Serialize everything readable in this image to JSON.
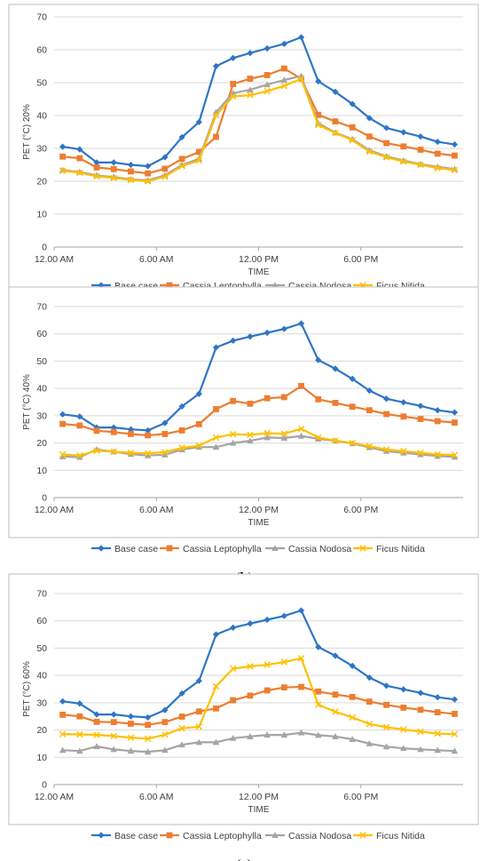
{
  "colors": {
    "base_case": "#2E75C6",
    "cassia_leptophylla": "#ED7D31",
    "cassia_nodosa": "#A5A5A5",
    "ficus_nitida": "#FFC000",
    "grid": "#D9D9D9",
    "frame": "#BFBFBF"
  },
  "chart_data": [
    {
      "type": "line",
      "caption_letter": "a",
      "ylabel": "PET (°C) 20%",
      "xlabel": "TIME",
      "ylim": [
        0,
        70
      ],
      "yticks": [
        0,
        10,
        20,
        30,
        40,
        50,
        60,
        70
      ],
      "xtick_labels": [
        "12.00 AM",
        "6.00 AM",
        "12.00 PM",
        "6.00 PM"
      ],
      "xtick_positions": [
        0,
        6,
        12,
        18
      ],
      "x": [
        0.5,
        1.5,
        2.5,
        3.5,
        4.5,
        5.5,
        6.5,
        7.5,
        8.5,
        9.5,
        10.5,
        11.5,
        12.5,
        13.5,
        14.5,
        15.5,
        16.5,
        17.5,
        18.5,
        19.5,
        20.5,
        21.5,
        22.5,
        23.5
      ],
      "legend_position": "bottom",
      "grid": true,
      "series": [
        {
          "name": "Base case",
          "color_key": "base_case",
          "marker": "diamond",
          "values": [
            30.5,
            29.7,
            25.7,
            25.7,
            25.0,
            24.6,
            27.3,
            33.4,
            38.0,
            55.0,
            57.5,
            59.0,
            60.4,
            61.8,
            63.8,
            50.4,
            47.2,
            43.5,
            39.2,
            36.2,
            34.9,
            33.6,
            32.0,
            31.2
          ]
        },
        {
          "name": "Cassia Leptophylla",
          "color_key": "cassia_leptophylla",
          "marker": "square",
          "values": [
            27.5,
            27.0,
            24.2,
            23.7,
            23.0,
            22.4,
            23.8,
            26.8,
            28.9,
            33.5,
            49.6,
            51.2,
            52.3,
            54.3,
            51.2,
            40.2,
            38.2,
            36.4,
            33.6,
            31.6,
            30.6,
            29.6,
            28.4,
            27.8
          ]
        },
        {
          "name": "Cassia Nodosa",
          "color_key": "cassia_nodosa",
          "marker": "triangle",
          "values": [
            23.4,
            22.8,
            21.8,
            21.3,
            20.6,
            20.3,
            21.8,
            25.0,
            26.8,
            41.0,
            46.8,
            47.8,
            49.4,
            50.8,
            52.0,
            37.6,
            34.8,
            32.8,
            29.4,
            27.6,
            26.3,
            25.2,
            24.4,
            23.7
          ]
        },
        {
          "name": "Ficus Nitida",
          "color_key": "ficus_nitida",
          "marker": "x",
          "values": [
            23.2,
            22.6,
            21.5,
            21.0,
            20.4,
            20.0,
            21.4,
            24.6,
            26.3,
            40.1,
            45.8,
            46.2,
            47.4,
            49.0,
            51.2,
            37.1,
            34.7,
            32.5,
            29.0,
            27.3,
            26.0,
            25.0,
            24.0,
            23.4
          ]
        }
      ]
    },
    {
      "type": "line",
      "caption_letter": "b",
      "ylabel": "PET (°C) 40%",
      "xlabel": "TIME",
      "ylim": [
        0,
        70
      ],
      "yticks": [
        0,
        10,
        20,
        30,
        40,
        50,
        60,
        70
      ],
      "xtick_labels": [
        "12.00 AM",
        "6.00 AM",
        "12.00 PM",
        "6.00 PM"
      ],
      "xtick_positions": [
        0,
        6,
        12,
        18
      ],
      "x": [
        0.5,
        1.5,
        2.5,
        3.5,
        4.5,
        5.5,
        6.5,
        7.5,
        8.5,
        9.5,
        10.5,
        11.5,
        12.5,
        13.5,
        14.5,
        15.5,
        16.5,
        17.5,
        18.5,
        19.5,
        20.5,
        21.5,
        22.5,
        23.5
      ],
      "legend_position": "bottom",
      "grid": true,
      "series": [
        {
          "name": "Base case",
          "color_key": "base_case",
          "marker": "diamond",
          "values": [
            30.5,
            29.7,
            25.7,
            25.7,
            25.0,
            24.6,
            27.3,
            33.4,
            38.0,
            55.0,
            57.5,
            59.0,
            60.4,
            61.8,
            63.8,
            50.4,
            47.2,
            43.5,
            39.2,
            36.2,
            34.9,
            33.6,
            32.0,
            31.2
          ]
        },
        {
          "name": "Cassia Leptophylla",
          "color_key": "cassia_leptophylla",
          "marker": "square",
          "values": [
            27.0,
            26.4,
            24.5,
            24.0,
            23.3,
            22.8,
            23.3,
            24.6,
            26.9,
            32.4,
            35.4,
            34.4,
            36.4,
            36.8,
            40.9,
            36.0,
            34.7,
            33.3,
            32.0,
            30.6,
            29.7,
            28.8,
            28.0,
            27.5
          ]
        },
        {
          "name": "Cassia Nodosa",
          "color_key": "cassia_nodosa",
          "marker": "triangle",
          "values": [
            15.0,
            14.8,
            17.6,
            16.8,
            15.9,
            15.4,
            15.7,
            17.6,
            18.5,
            18.5,
            20.0,
            20.8,
            22.0,
            21.8,
            22.6,
            21.5,
            20.8,
            19.8,
            18.4,
            17.0,
            16.4,
            15.8,
            15.2,
            14.9
          ]
        },
        {
          "name": "Ficus Nitida",
          "color_key": "ficus_nitida",
          "marker": "x",
          "values": [
            15.8,
            15.4,
            17.2,
            16.8,
            16.4,
            16.2,
            16.6,
            18.2,
            19.0,
            22.0,
            23.2,
            23.0,
            23.6,
            23.4,
            25.2,
            22.0,
            20.9,
            20.0,
            18.8,
            17.6,
            17.0,
            16.4,
            15.8,
            15.6
          ]
        }
      ]
    },
    {
      "type": "line",
      "caption_letter": "c",
      "ylabel": "PET (°C) 60%",
      "xlabel": "TIME",
      "ylim": [
        0,
        70
      ],
      "yticks": [
        0,
        10,
        20,
        30,
        40,
        50,
        60,
        70
      ],
      "xtick_labels": [
        "12.00 AM",
        "6.00 AM",
        "12.00 PM",
        "6.00 PM"
      ],
      "xtick_positions": [
        0,
        6,
        12,
        18
      ],
      "x": [
        0.5,
        1.5,
        2.5,
        3.5,
        4.5,
        5.5,
        6.5,
        7.5,
        8.5,
        9.5,
        10.5,
        11.5,
        12.5,
        13.5,
        14.5,
        15.5,
        16.5,
        17.5,
        18.5,
        19.5,
        20.5,
        21.5,
        22.5,
        23.5
      ],
      "legend_position": "bottom",
      "grid": true,
      "series": [
        {
          "name": "Base case",
          "color_key": "base_case",
          "marker": "diamond",
          "values": [
            30.5,
            29.7,
            25.7,
            25.7,
            25.0,
            24.6,
            27.3,
            33.4,
            38.0,
            55.0,
            57.5,
            59.0,
            60.4,
            61.8,
            63.8,
            50.4,
            47.2,
            43.5,
            39.2,
            36.2,
            34.9,
            33.6,
            32.0,
            31.2
          ]
        },
        {
          "name": "Cassia Leptophylla",
          "color_key": "cassia_leptophylla",
          "marker": "square",
          "values": [
            25.6,
            25.0,
            23.0,
            22.9,
            22.3,
            21.9,
            22.9,
            24.9,
            26.8,
            27.9,
            30.9,
            32.6,
            34.5,
            35.6,
            35.8,
            34.1,
            33.0,
            32.1,
            30.4,
            29.2,
            28.2,
            27.4,
            26.5,
            25.9
          ]
        },
        {
          "name": "Cassia Nodosa",
          "color_key": "cassia_nodosa",
          "marker": "triangle",
          "values": [
            12.6,
            12.3,
            14.0,
            12.9,
            12.3,
            12.0,
            12.6,
            14.6,
            15.5,
            15.5,
            17.0,
            17.6,
            18.2,
            18.2,
            19.0,
            18.1,
            17.6,
            16.6,
            15.0,
            13.9,
            13.3,
            12.9,
            12.6,
            12.3
          ]
        },
        {
          "name": "Ficus Nitida",
          "color_key": "ficus_nitida",
          "marker": "x",
          "values": [
            18.5,
            18.4,
            18.2,
            17.8,
            17.2,
            16.8,
            18.3,
            20.6,
            21.2,
            36.0,
            42.5,
            43.3,
            43.9,
            44.9,
            46.3,
            29.3,
            26.7,
            24.6,
            22.2,
            21.0,
            20.2,
            19.4,
            18.7,
            18.5
          ]
        }
      ]
    }
  ]
}
